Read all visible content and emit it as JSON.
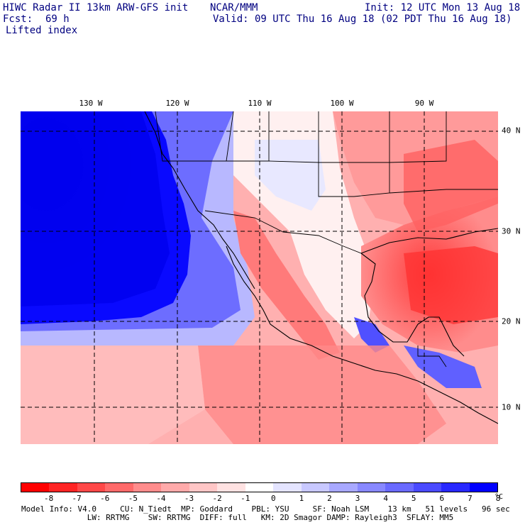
{
  "header": {
    "line1_left": "HIWC Radar II 13km ARW-GFS init",
    "line1_center": "NCAR/MMM",
    "line1_right": "Init: 12 UTC Mon 13 Aug 18",
    "fcst_label": "Fcst:",
    "fcst_value": "69 h",
    "valid": "Valid: 09 UTC Thu 16 Aug 18 (02 PDT Thu 16 Aug 18)",
    "field": "Lifted index"
  },
  "map": {
    "lon_labels": [
      "130 W",
      "120 W",
      "110 W",
      "100 W",
      "90 W"
    ],
    "lat_labels": [
      "40 N",
      "30 N",
      "20 N",
      "10 N"
    ],
    "extent": {
      "lon_min": -139,
      "lon_max": -81,
      "lat_min": 6.5,
      "lat_max": 42
    }
  },
  "colorbar": {
    "colors": [
      "#ff0000",
      "#ff2424",
      "#ff4848",
      "#ff6a6a",
      "#ff8c8c",
      "#ffaaaa",
      "#ffc6c6",
      "#ffe2e2",
      "#ffffff",
      "#e4e4ff",
      "#c8c8ff",
      "#a8a8ff",
      "#8888ff",
      "#6a6aff",
      "#4a4aff",
      "#2828ff",
      "#0000ff"
    ],
    "ticks": [
      "-8",
      "-7",
      "-6",
      "-5",
      "-4",
      "-3",
      "-2",
      "-1",
      "0",
      "1",
      "2",
      "3",
      "4",
      "5",
      "6",
      "7",
      "8"
    ],
    "unit": "°C"
  },
  "footer": {
    "line1": "Model Info: V4.0     CU: N_Tiedt  MP: Goddard    PBL: YSU     SF: Noah LSM    13 km   51 levels   96 sec",
    "line2": "              LW: RRTMG    SW: RRTMG  DIFF: full   KM: 2D Smagor DAMP: Rayleigh3  SFLAY: MM5"
  }
}
